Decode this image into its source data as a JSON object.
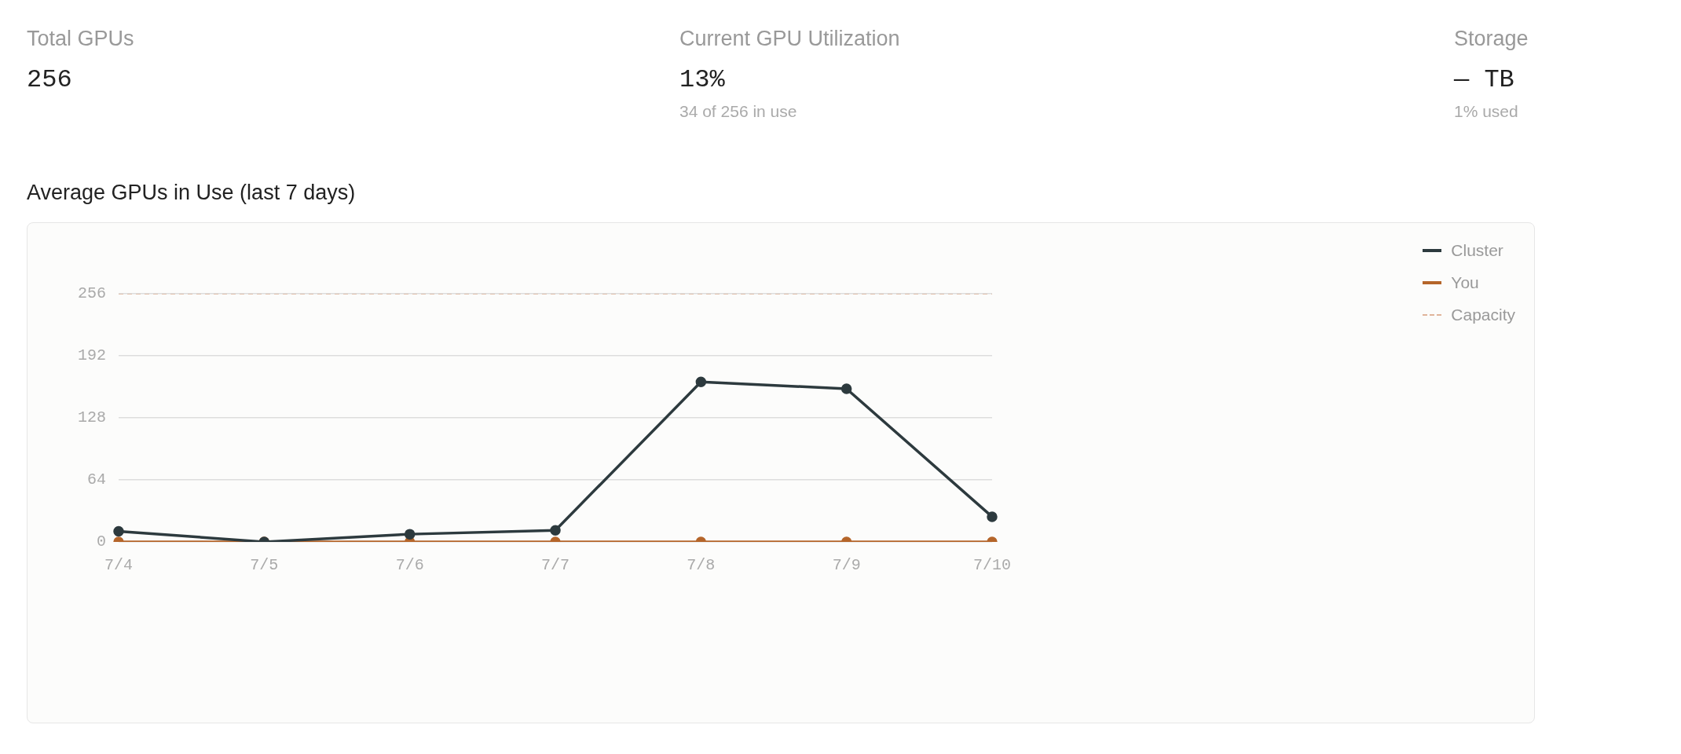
{
  "chart_data": [
    {
      "type": "other",
      "title": "Total GPUs",
      "annotations": [
        "256"
      ]
    },
    {
      "type": "other",
      "title": "Current GPU Utilization",
      "annotations": [
        "13%",
        "34 of 256 in use"
      ]
    },
    {
      "type": "other",
      "title": "Storage",
      "annotations": [
        "— TB",
        "1% used"
      ]
    },
    {
      "type": "line",
      "title": "Average GPUs in Use (last 7 days)",
      "categories": [
        "7/4",
        "7/5",
        "7/6",
        "7/7",
        "7/8",
        "7/9",
        "7/10"
      ],
      "ylim": [
        0,
        256
      ],
      "yticks": [
        0,
        64,
        128,
        192,
        256
      ],
      "grid": "y",
      "legend": "top right",
      "marker": "circle",
      "line_style": "solid",
      "series": [
        {
          "name": "Cluster",
          "color": "#2d3a3e",
          "values": [
            11,
            0,
            8,
            12,
            165,
            158,
            26
          ]
        },
        {
          "name": "You",
          "color": "#b5652a",
          "values": [
            0,
            0,
            0,
            0,
            0,
            0,
            0
          ]
        },
        {
          "name": "Capacity",
          "color": "#e0b49a",
          "values": [
            256,
            256,
            256,
            256,
            256,
            256,
            256
          ],
          "line_style": "dashed",
          "marker": "none"
        }
      ]
    }
  ]
}
